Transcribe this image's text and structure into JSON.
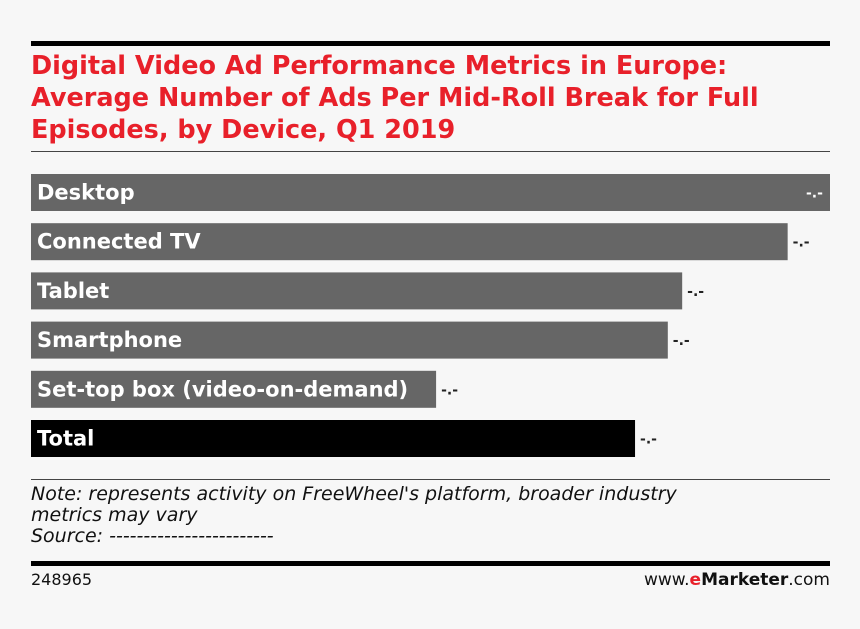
{
  "chart_data": {
    "type": "bar",
    "orientation": "horizontal",
    "title": "Digital Video Ad Performance Metrics in Europe: Average Number of Ads Per Mid-Roll Break for Full Episodes, by Device, Q1 2019",
    "categories": [
      "Desktop",
      "Connected TV",
      "Tablet",
      "Smartphone",
      "Set-top box (video-on-demand)",
      "Total"
    ],
    "values": [
      1.0,
      0.947,
      0.815,
      0.797,
      0.507,
      0.756
    ],
    "value_labels": [
      "-.-",
      "-.-",
      "-.-",
      "-.-",
      "-.-",
      "-.-"
    ],
    "highlight_category": "Total",
    "colors": {
      "default": "#666666",
      "highlight": "#000000"
    },
    "xlim": [
      0,
      1
    ],
    "xlabel": "",
    "ylabel": ""
  },
  "header": {
    "title_lines": [
      "Digital Video Ad Performance Metrics in Europe:",
      "Average Number of Ads Per Mid-Roll Break for Full",
      "Episodes, by Device, Q1 2019"
    ]
  },
  "footer": {
    "note_line1": "Note: represents activity on FreeWheel's platform, broader industry",
    "note_line2": "metrics may vary",
    "source": "Source: ------------------------",
    "chart_id": "248965",
    "brand_prefix": "www.",
    "brand_accent": "e",
    "brand_name": "Marketer",
    "brand_suffix": ".com"
  },
  "colors": {
    "accent": "#e8202a"
  }
}
